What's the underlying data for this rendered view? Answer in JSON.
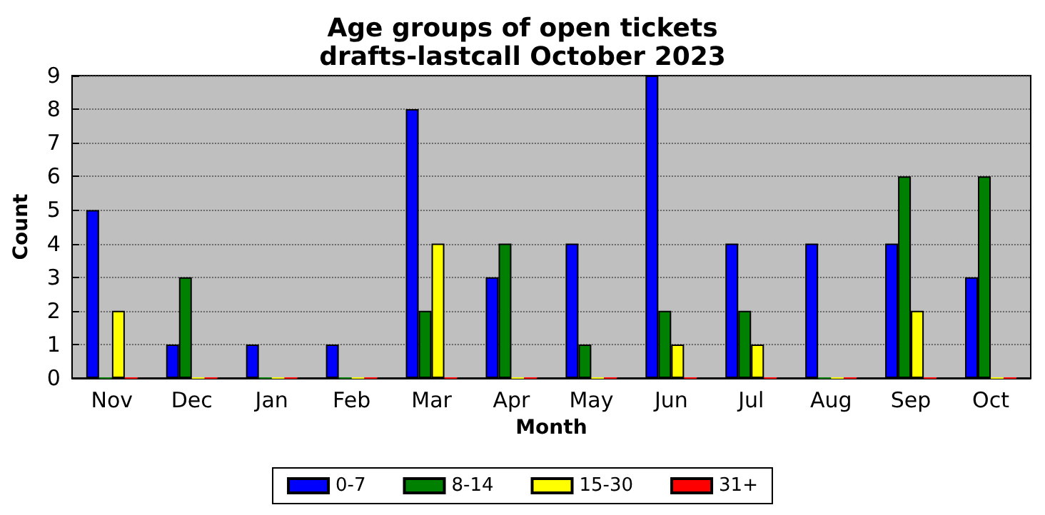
{
  "chart_data": {
    "type": "bar",
    "title": "Age groups of open tickets",
    "subtitle": "drafts-lastcall October 2023",
    "xlabel": "Month",
    "ylabel": "Count",
    "categories": [
      "Nov",
      "Dec",
      "Jan",
      "Feb",
      "Mar",
      "Apr",
      "May",
      "Jun",
      "Jul",
      "Aug",
      "Sep",
      "Oct"
    ],
    "series": [
      {
        "name": "0-7",
        "color": "#0000ff",
        "values": [
          5,
          1,
          1,
          1,
          8,
          3,
          4,
          9,
          4,
          4,
          4,
          3
        ]
      },
      {
        "name": "8-14",
        "color": "#008000",
        "values": [
          0,
          3,
          0,
          0,
          2,
          4,
          1,
          2,
          2,
          0,
          6,
          6
        ]
      },
      {
        "name": "15-30",
        "color": "#ffff00",
        "values": [
          2,
          0,
          0,
          0,
          4,
          0,
          0,
          1,
          1,
          0,
          2,
          0
        ]
      },
      {
        "name": "31+",
        "color": "#ff0000",
        "values": [
          0,
          0,
          0,
          0,
          0,
          0,
          0,
          0,
          0,
          0,
          0,
          0
        ]
      }
    ],
    "ylim": [
      0,
      9
    ],
    "yticks": [
      0,
      1,
      2,
      3,
      4,
      5,
      6,
      7,
      8,
      9
    ],
    "grid": "y",
    "legend": "bottom"
  }
}
